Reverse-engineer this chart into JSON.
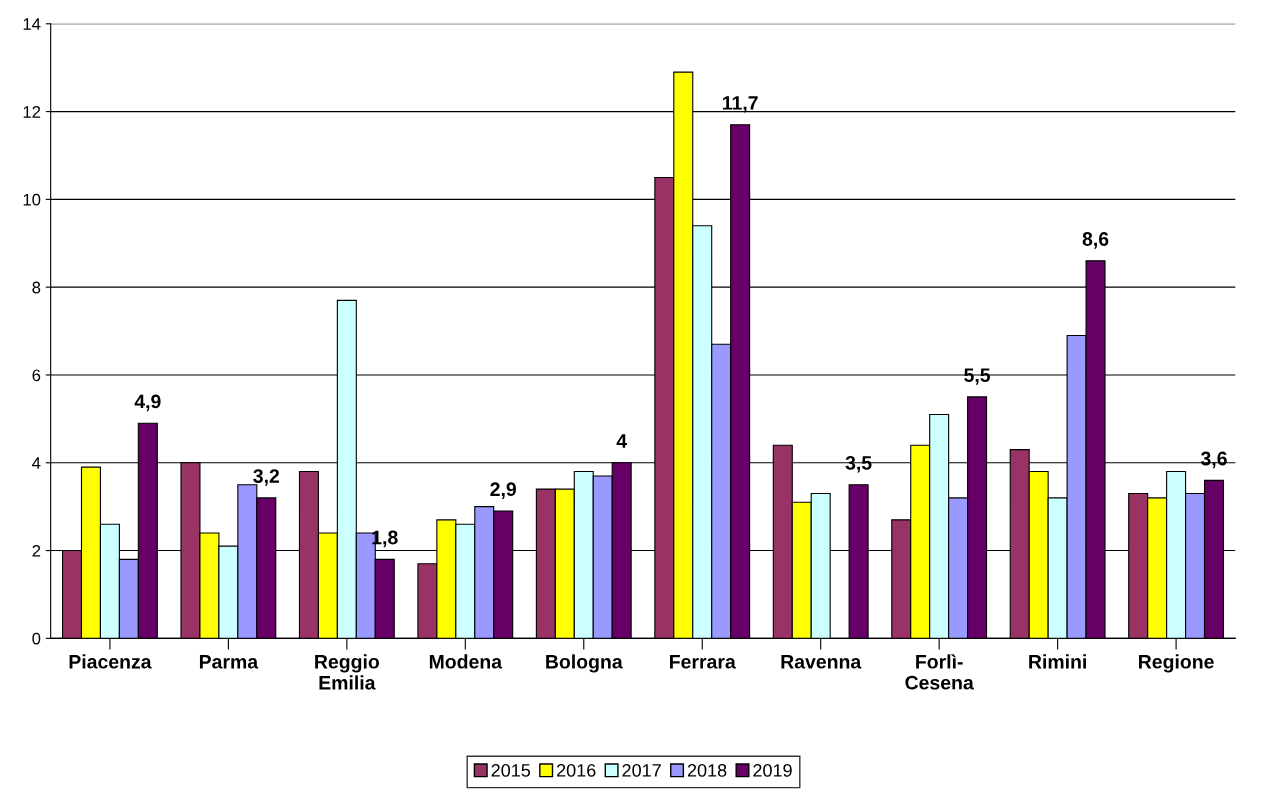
{
  "chart_data": {
    "type": "bar",
    "categories": [
      "Piacenza",
      "Parma",
      "Reggio\nEmilia",
      "Modena",
      "Bologna",
      "Ferrara",
      "Ravenna",
      "Forlì-\nCesena",
      "Rimini",
      "Regione"
    ],
    "series": [
      {
        "name": "2015",
        "color": "#993366",
        "values": [
          2.0,
          4.0,
          3.8,
          1.7,
          3.4,
          10.5,
          4.4,
          2.7,
          4.3,
          3.3
        ]
      },
      {
        "name": "2016",
        "color": "#ffff00",
        "values": [
          3.9,
          2.4,
          2.4,
          2.7,
          3.4,
          12.9,
          3.1,
          4.4,
          3.8,
          3.2
        ]
      },
      {
        "name": "2017",
        "color": "#ccffff",
        "values": [
          2.6,
          2.1,
          7.7,
          2.6,
          3.8,
          9.4,
          3.3,
          5.1,
          3.2,
          3.8
        ]
      },
      {
        "name": "2018",
        "color": "#9999ff",
        "values": [
          1.8,
          3.5,
          2.4,
          3.0,
          3.7,
          6.7,
          null,
          3.2,
          6.9,
          3.3
        ]
      },
      {
        "name": "2019",
        "color": "#660066",
        "values": [
          4.9,
          3.2,
          1.8,
          2.9,
          4.0,
          11.7,
          3.5,
          5.5,
          8.6,
          3.6
        ],
        "value_labels": [
          "4,9",
          "3,2",
          "1,8",
          "2,9",
          "4",
          "11,7",
          "3,5",
          "5,5",
          "8,6",
          "3,6"
        ]
      }
    ],
    "ylim": [
      0,
      14
    ],
    "yticks": [
      0,
      2,
      4,
      6,
      8,
      10,
      12,
      14
    ],
    "grid": "y",
    "legend": "bottom"
  }
}
